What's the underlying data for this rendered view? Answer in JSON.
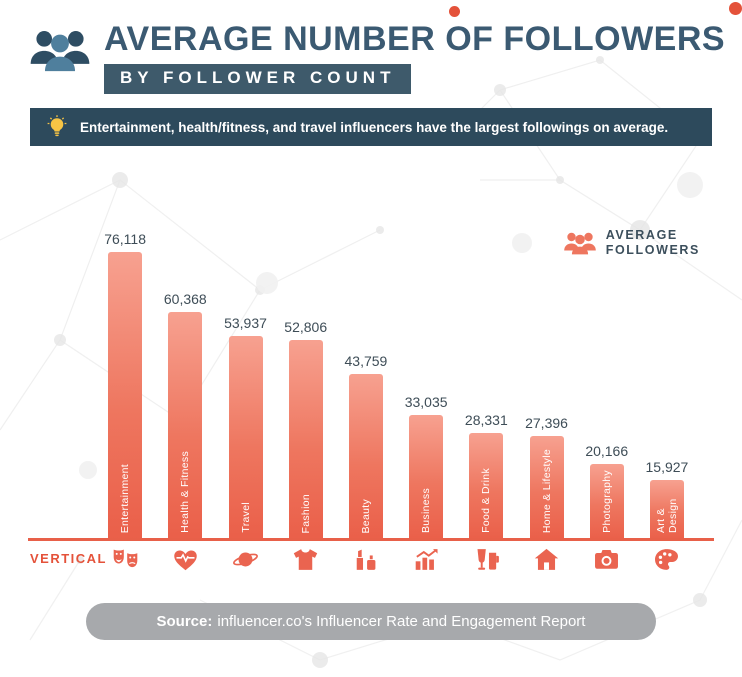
{
  "header": {
    "title": "AVERAGE NUMBER OF FOLLOWERS",
    "subtitle": "BY FOLLOWER COUNT"
  },
  "callout": {
    "text": "Entertainment, health/fitness, and travel influencers have the largest followings on average."
  },
  "legend": {
    "line1": "AVERAGE",
    "line2": "FOLLOWERS"
  },
  "axis": {
    "x_label": "VERTICAL"
  },
  "source": {
    "prefix": "Source:",
    "rest": " influencer.co's Influencer Rate and Engagement Report"
  },
  "colors": {
    "bar_top": "#f7a190",
    "bar_bottom": "#ea5f49",
    "accent_coral": "#e86049",
    "slate_dark": "#2d4a5c",
    "slate_title": "#3b5a72",
    "bulb_yellow": "#f6c445",
    "source_gray": "#a7a9ac"
  },
  "chart_data": {
    "type": "bar",
    "title": "Average Number of Followers by Follower Count",
    "xlabel": "VERTICAL",
    "ylabel": "Average Followers",
    "ylim": [
      0,
      80000
    ],
    "grid": false,
    "legend_position": "top-right",
    "categories": [
      "Entertainment",
      "Health & Fitness",
      "Travel",
      "Fashion",
      "Beauty",
      "Business",
      "Food & Drink",
      "Home & Lifestyle",
      "Photography",
      "Art & Design"
    ],
    "values": [
      76118,
      60368,
      53937,
      52806,
      43759,
      33035,
      28331,
      27396,
      20166,
      15927
    ],
    "value_labels": [
      "76,118",
      "60,368",
      "53,937",
      "52,806",
      "43,759",
      "33,035",
      "28,331",
      "27,396",
      "20,166",
      "15,927"
    ],
    "icons": [
      "theater-masks",
      "heart-pulse",
      "planet-ring",
      "tshirt",
      "cosmetics",
      "bar-chart-growth",
      "drinks",
      "house",
      "camera",
      "paint-palette"
    ]
  }
}
